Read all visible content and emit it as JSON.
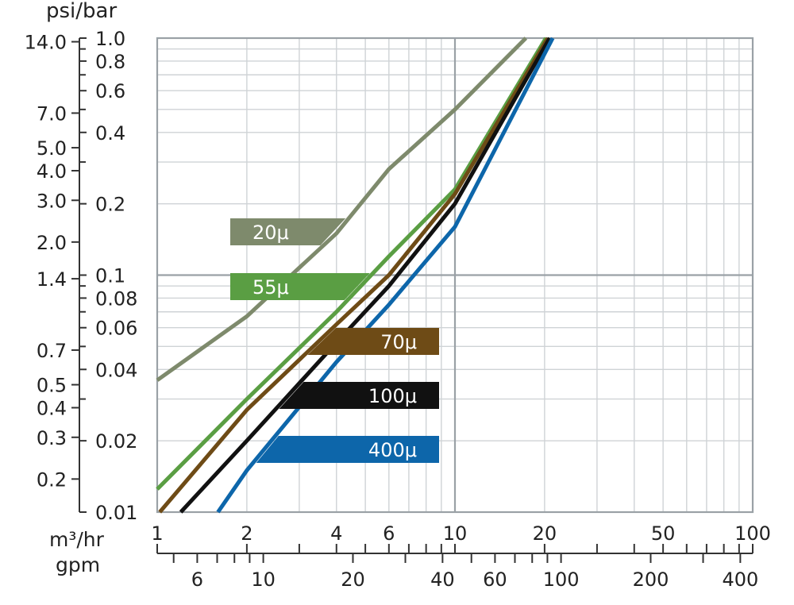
{
  "chart_data": {
    "type": "line",
    "x_scale": "log",
    "y_scale": "log",
    "grid": true,
    "y_unit_label": "psi/bar",
    "x_unit_labels": [
      "m³/hr",
      "gpm"
    ],
    "xlim_m3hr": [
      1,
      100
    ],
    "ylim_bar": [
      0.01,
      1.0
    ],
    "y_ticks_bar": [
      {
        "value": 1.0,
        "label": "1.0"
      },
      {
        "value": 0.8,
        "label": "0.8"
      },
      {
        "value": 0.6,
        "label": "0.6"
      },
      {
        "value": 0.4,
        "label": "0.4"
      },
      {
        "value": 0.2,
        "label": "0.2"
      },
      {
        "value": 0.1,
        "label": "0.1"
      },
      {
        "value": 0.08,
        "label": "0.08"
      },
      {
        "value": 0.06,
        "label": "0.06"
      },
      {
        "value": 0.04,
        "label": "0.04"
      },
      {
        "value": 0.02,
        "label": "0.02"
      },
      {
        "value": 0.01,
        "label": "0.01"
      }
    ],
    "y_ticks_psi": [
      {
        "value": 14.0,
        "label": "14.0"
      },
      {
        "value": 7.0,
        "label": "7.0"
      },
      {
        "value": 5.0,
        "label": "5.0"
      },
      {
        "value": 4.0,
        "label": "4.0"
      },
      {
        "value": 3.0,
        "label": "3.0"
      },
      {
        "value": 2.0,
        "label": "2.0"
      },
      {
        "value": 1.4,
        "label": "1.4"
      },
      {
        "value": 0.7,
        "label": "0.7"
      },
      {
        "value": 0.5,
        "label": "0.5"
      },
      {
        "value": 0.4,
        "label": "0.4"
      },
      {
        "value": 0.3,
        "label": "0.3"
      },
      {
        "value": 0.2,
        "label": "0.2"
      }
    ],
    "x_ticks_m3hr": [
      {
        "value": 1,
        "label": "1"
      },
      {
        "value": 2,
        "label": "2"
      },
      {
        "value": 4,
        "label": "4"
      },
      {
        "value": 6,
        "label": "6"
      },
      {
        "value": 10,
        "label": "10"
      },
      {
        "value": 20,
        "label": "20"
      },
      {
        "value": 50,
        "label": "50"
      },
      {
        "value": 100,
        "label": "100"
      }
    ],
    "x_ticks_gpm": [
      {
        "value": 6,
        "label": "6"
      },
      {
        "value": 10,
        "label": "10"
      },
      {
        "value": 20,
        "label": "20"
      },
      {
        "value": 40,
        "label": "40"
      },
      {
        "value": 60,
        "label": "60"
      },
      {
        "value": 100,
        "label": "100"
      },
      {
        "value": 200,
        "label": "200"
      },
      {
        "value": 400,
        "label": "400"
      }
    ],
    "series": [
      {
        "name": "20μ",
        "color": "#7e8a6c",
        "x": [
          1.0,
          2.0,
          4.0,
          6.0,
          10.0,
          17.3
        ],
        "y": [
          0.036,
          0.067,
          0.15,
          0.28,
          0.5,
          1.0
        ]
      },
      {
        "name": "55μ",
        "color": "#5a9e43",
        "x": [
          1.0,
          2.0,
          4.0,
          6.0,
          10.0,
          20.2
        ],
        "y": [
          0.0125,
          0.03,
          0.07,
          0.12,
          0.23,
          1.0
        ]
      },
      {
        "name": "70μ",
        "color": "#6e4b16",
        "x": [
          1.02,
          2.0,
          4.0,
          6.0,
          10.0,
          20.5
        ],
        "y": [
          0.01,
          0.027,
          0.062,
          0.1,
          0.22,
          1.0
        ]
      },
      {
        "name": "100μ",
        "color": "#111111",
        "x": [
          1.2,
          2.0,
          4.0,
          6.0,
          10.0,
          20.8
        ],
        "y": [
          0.01,
          0.02,
          0.052,
          0.09,
          0.2,
          1.0
        ]
      },
      {
        "name": "400μ",
        "color": "#0d66aa",
        "x": [
          1.6,
          2.0,
          4.0,
          6.0,
          10.0,
          21.3
        ],
        "y": [
          0.01,
          0.015,
          0.043,
          0.075,
          0.16,
          1.0
        ]
      }
    ]
  }
}
